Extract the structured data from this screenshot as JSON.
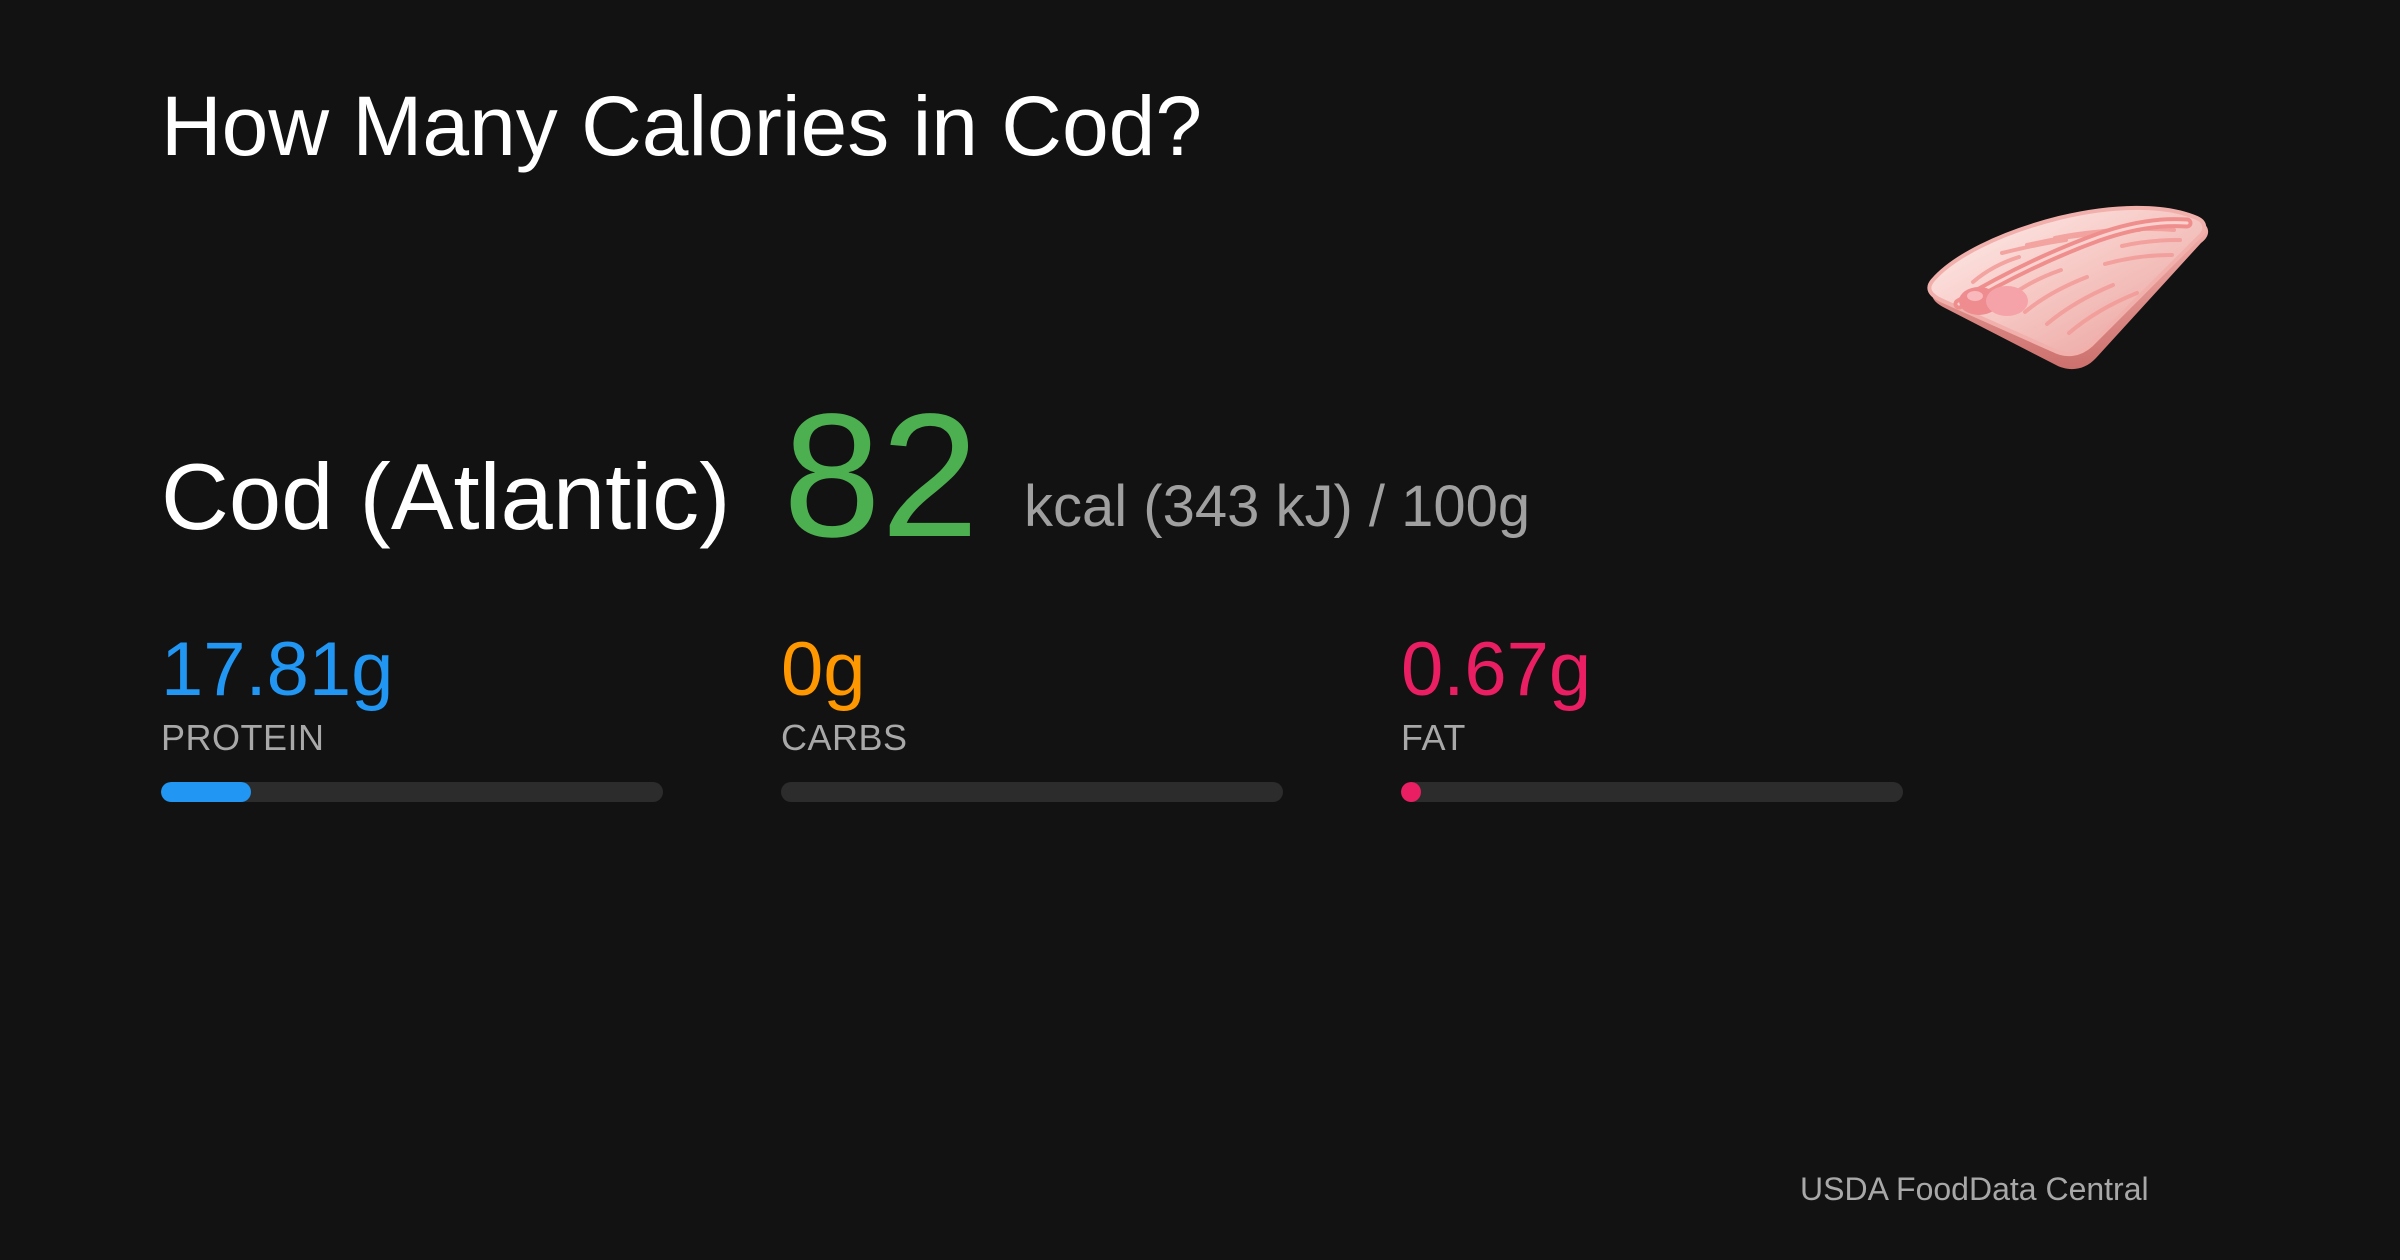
{
  "page": {
    "title": "How Many Calories in Cod?",
    "food_icon": "cod-fillet-icon",
    "background_color": "#121212"
  },
  "food": {
    "name": "Cod (Atlantic)",
    "kcal": "82",
    "kcal_detail": "kcal (343 kJ) / 100g",
    "kcal_color": "#4caf50"
  },
  "macros": [
    {
      "value": "17.81g",
      "label": "PROTEIN",
      "fill_fraction": 0.18,
      "color": "#2196f3"
    },
    {
      "value": "0g",
      "label": "CARBS",
      "fill_fraction": 0,
      "color": "#ff9800"
    },
    {
      "value": "0.67g",
      "label": "FAT",
      "fill_fraction": 0.04,
      "color": "#e91e63"
    }
  ],
  "footer": {
    "source": "USDA FoodData Central"
  }
}
